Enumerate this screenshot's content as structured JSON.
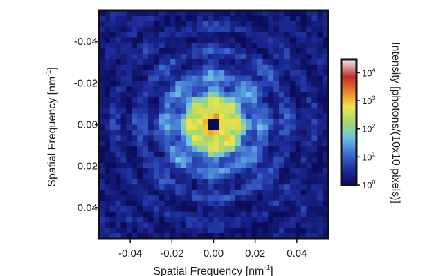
{
  "chart_data": {
    "type": "heatmap",
    "title": "",
    "xlabel": "Spatial Frequency [nm",
    "xlabel_sup": "-1",
    "xlabel_tail": "]",
    "ylabel": "Spatial Frequency [nm",
    "ylabel_sup": "-1",
    "ylabel_tail": "]",
    "xlim": [
      -0.055,
      0.055
    ],
    "ylim": [
      -0.055,
      0.055
    ],
    "y_inverted": true,
    "xticks": [
      -0.04,
      -0.02,
      0.0,
      0.02,
      0.04
    ],
    "xtick_labels": [
      "-0.04",
      "-0.02",
      "0.00",
      "0.02",
      "0.04"
    ],
    "yticks": [
      -0.04,
      -0.02,
      0.0,
      0.02,
      0.04
    ],
    "ytick_labels": [
      "-0.04",
      "-0.02",
      "0.00",
      "0.02",
      "0.04"
    ],
    "colorbar": {
      "label": "Intensity [photons/(10x10 pixels)]",
      "scale": "log",
      "range": [
        1,
        30000
      ],
      "ticks": [
        1,
        10,
        100,
        1000,
        10000
      ],
      "tick_base": "10",
      "tick_exponents": [
        "0",
        "1",
        "2",
        "3",
        "4"
      ]
    },
    "pattern": {
      "description_values": {
        "center_blocked_halfwidth": 0.0025,
        "peak_intensity": 20000,
        "background_intensity": 1,
        "ring_spacing": 0.012
      }
    },
    "colormap": [
      "#0c0c5a",
      "#1d2c9a",
      "#3f6fd3",
      "#6fc3e3",
      "#a8d86a",
      "#f0e64a",
      "#e8852a",
      "#c42a2a",
      "#f2f2f2"
    ]
  }
}
